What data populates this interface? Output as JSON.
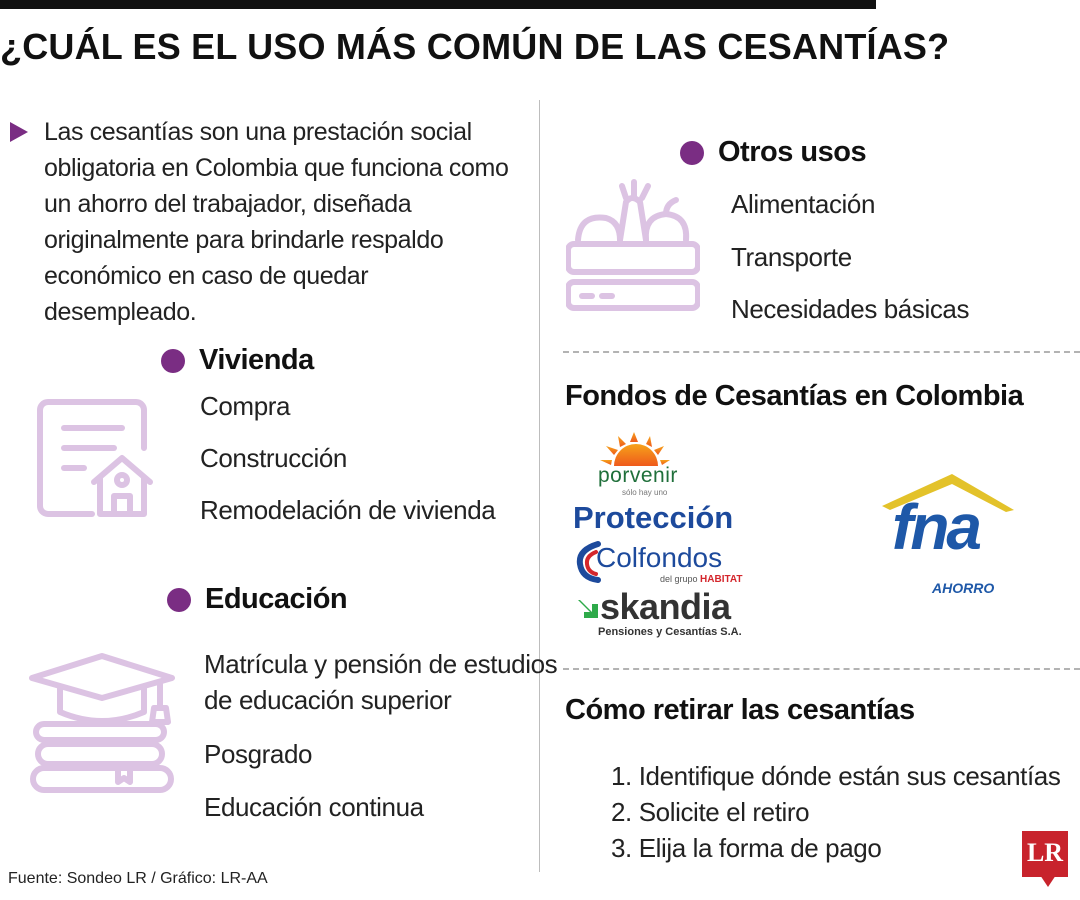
{
  "title": "¿CUÁL ES EL USO MÁS COMÚN DE LAS CESANTÍAS?",
  "intro": "Las cesantías son una prestación social obligatoria en Colombia que funciona como un ahorro del trabajador, diseñada originalmente para brindarle respaldo económico en caso de quedar desempleado.",
  "vivienda": {
    "heading": "Vivienda",
    "icon": "house-document-icon",
    "items": [
      "Compra",
      "Construcción",
      "Remodelación de vivienda"
    ]
  },
  "educacion": {
    "heading": "Educación",
    "icon": "graduation-books-icon",
    "items": [
      "Matrícula y pensión de estudios",
      "de educación superior",
      "Posgrado",
      "Educación continua"
    ]
  },
  "otros": {
    "heading": "Otros usos",
    "icon": "food-basket-icon",
    "items": [
      "Alimentación",
      "Transporte",
      "Necesidades básicas"
    ]
  },
  "fondos": {
    "heading": "Fondos de Cesantías en Colombia",
    "logos": {
      "porvenir": "porvenir",
      "porvenir_tag": "sólo hay uno",
      "proteccion": "Protección",
      "colfondos": "Colfondos",
      "colfondos_sub_prefix": "del grupo",
      "colfondos_sub_brand": "HABITAT",
      "skandia": "skandia",
      "skandia_sub": "Pensiones y Cesantías S.A.",
      "fna": "fna",
      "fna_sub": "AHORRO"
    }
  },
  "retiro": {
    "heading": "Cómo retirar las cesantías",
    "steps": [
      "1. Identifique dónde están sus cesantías",
      "2. Solicite el retiro",
      "3. Elija la forma de pago"
    ]
  },
  "source": "Fuente: Sondeo LR / Gráfico: LR-AA",
  "brand": "LR",
  "colors": {
    "accent": "#7a2d83",
    "icon_stroke": "#dcc3e3",
    "brand_red": "#c8232c",
    "fna_blue": "#1e58a8",
    "fna_roof": "#e3c22a"
  }
}
